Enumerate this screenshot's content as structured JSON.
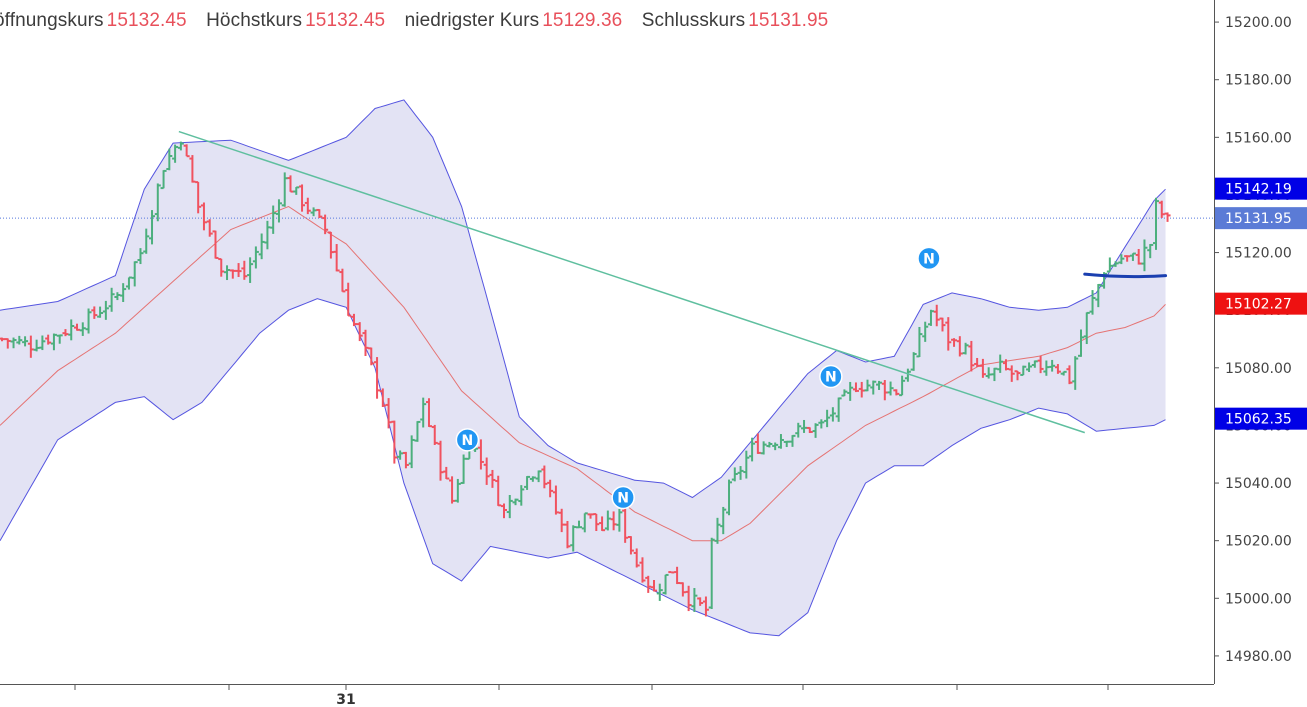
{
  "legend": {
    "open_label": "öffnungskurs",
    "open_value": "15132.45",
    "high_label": "Höchstkurs",
    "high_value": "15132.45",
    "low_label": "niedrigster Kurs",
    "low_value": "15129.36",
    "close_label": "Schlusskurs",
    "close_value": "15131.95"
  },
  "colors": {
    "up": "#4caf7d",
    "down": "#f0525f",
    "band_fill": "#e3e3f4",
    "band_line": "#5555e0",
    "basis": "#e57373",
    "trendline": "#5fbf9f",
    "support": "#1a3fb0",
    "tag_upper": "#0000e6",
    "tag_price": "#5b7bd6",
    "tag_mid": "#ee1111",
    "news": "#2196f3"
  },
  "chart_data": {
    "type": "ohlc",
    "y_tick_labels": [
      "15200.00",
      "15180.00",
      "15160.00",
      "15140.00",
      "15120.00",
      "15100.00",
      "15080.00",
      "15060.00",
      "15040.00",
      "15020.00",
      "15000.00",
      "14980.00"
    ],
    "y_ticks": [
      15200,
      15180,
      15160,
      15140,
      15120,
      15100,
      15080,
      15060,
      15040,
      15020,
      15000,
      14980
    ],
    "ylim": [
      14976.5,
      15203.5
    ],
    "x_tick_labels": [
      "31"
    ],
    "grid": false,
    "price_tags": [
      {
        "value": 15142.19,
        "label": "15142.19",
        "role": "upper"
      },
      {
        "value": 15131.95,
        "label": "15131.95",
        "role": "price"
      },
      {
        "value": 15102.27,
        "label": "15102.27",
        "role": "mid"
      },
      {
        "value": 15062.35,
        "label": "15062.35",
        "role": "lower"
      }
    ],
    "last_price_line": 15131.95,
    "news_marker_label": "N",
    "news_markers": [
      {
        "bar": 81,
        "y": 15055.0
      },
      {
        "bar": 108,
        "y": 15035.0
      },
      {
        "bar": 144,
        "y": 15077.0
      },
      {
        "bar": 161,
        "y": 15118.0
      }
    ],
    "trendline": {
      "from": {
        "bar": 31,
        "y": 15162.0
      },
      "to": {
        "bar": 188,
        "y": 15057.5
      }
    },
    "support_line": {
      "from": {
        "bar": 188,
        "y": 15112.5
      },
      "to": {
        "bar": 202,
        "y": 15112.0
      }
    },
    "series": [
      {
        "name": "bars",
        "anchors": [
          [
            0,
            15090
          ],
          [
            5,
            15088
          ],
          [
            10,
            15092
          ],
          [
            15,
            15097
          ],
          [
            20,
            15105
          ],
          [
            24,
            15120
          ],
          [
            28,
            15150
          ],
          [
            31,
            15160
          ],
          [
            34,
            15136
          ],
          [
            38,
            15115
          ],
          [
            42,
            15112
          ],
          [
            46,
            15128
          ],
          [
            49,
            15145
          ],
          [
            52,
            15138
          ],
          [
            56,
            15128
          ],
          [
            60,
            15100
          ],
          [
            64,
            15080
          ],
          [
            66,
            15068
          ],
          [
            68,
            15050
          ],
          [
            70,
            15046
          ],
          [
            73,
            15068
          ],
          [
            75,
            15052
          ],
          [
            78,
            15034
          ],
          [
            81,
            15055
          ],
          [
            84,
            15044
          ],
          [
            87,
            15030
          ],
          [
            90,
            15040
          ],
          [
            93,
            15046
          ],
          [
            96,
            15030
          ],
          [
            98,
            15020
          ],
          [
            101,
            15030
          ],
          [
            104,
            15024
          ],
          [
            107,
            15028
          ],
          [
            110,
            15012
          ],
          [
            113,
            15002
          ],
          [
            116,
            15010
          ],
          [
            119,
            15000
          ],
          [
            122,
            14996
          ],
          [
            123,
            15018
          ],
          [
            126,
            15038
          ],
          [
            130,
            15052
          ],
          [
            134,
            15055
          ],
          [
            138,
            15058
          ],
          [
            142,
            15060
          ],
          [
            145,
            15067
          ],
          [
            148,
            15074
          ],
          [
            152,
            15074
          ],
          [
            155,
            15072
          ],
          [
            158,
            15084
          ],
          [
            161,
            15100
          ],
          [
            164,
            15090
          ],
          [
            167,
            15086
          ],
          [
            170,
            15076
          ],
          [
            173,
            15080
          ],
          [
            176,
            15077
          ],
          [
            179,
            15080
          ],
          [
            182,
            15082
          ],
          [
            185,
            15076
          ],
          [
            188,
            15098
          ],
          [
            191,
            15114
          ],
          [
            194,
            15118
          ],
          [
            197,
            15118
          ],
          [
            199,
            15123
          ],
          [
            200,
            15136
          ],
          [
            202,
            15131
          ]
        ]
      },
      {
        "name": "upper band",
        "anchors": [
          [
            0,
            15100
          ],
          [
            10,
            15103
          ],
          [
            20,
            15112
          ],
          [
            25,
            15142
          ],
          [
            30,
            15158
          ],
          [
            40,
            15159
          ],
          [
            50,
            15152
          ],
          [
            60,
            15160
          ],
          [
            65,
            15170
          ],
          [
            70,
            15173
          ],
          [
            75,
            15160
          ],
          [
            80,
            15136
          ],
          [
            85,
            15100
          ],
          [
            90,
            15063
          ],
          [
            95,
            15053
          ],
          [
            100,
            15047
          ],
          [
            105,
            15044
          ],
          [
            110,
            15041
          ],
          [
            115,
            15040
          ],
          [
            120,
            15035
          ],
          [
            125,
            15042
          ],
          [
            130,
            15054
          ],
          [
            135,
            15066
          ],
          [
            140,
            15078
          ],
          [
            145,
            15086
          ],
          [
            150,
            15082
          ],
          [
            155,
            15084
          ],
          [
            160,
            15102
          ],
          [
            165,
            15106
          ],
          [
            170,
            15104
          ],
          [
            175,
            15101
          ],
          [
            180,
            15100
          ],
          [
            185,
            15101
          ],
          [
            190,
            15106
          ],
          [
            195,
            15122
          ],
          [
            200,
            15138
          ],
          [
            202,
            15142
          ]
        ]
      },
      {
        "name": "basis",
        "anchors": [
          [
            0,
            15060
          ],
          [
            10,
            15079
          ],
          [
            20,
            15092
          ],
          [
            30,
            15110
          ],
          [
            40,
            15128
          ],
          [
            50,
            15136
          ],
          [
            56,
            15128
          ],
          [
            60,
            15123
          ],
          [
            70,
            15101
          ],
          [
            80,
            15072
          ],
          [
            90,
            15054
          ],
          [
            100,
            15045
          ],
          [
            110,
            15030
          ],
          [
            120,
            15020
          ],
          [
            125,
            15020
          ],
          [
            130,
            15026
          ],
          [
            140,
            15046
          ],
          [
            150,
            15060
          ],
          [
            160,
            15070
          ],
          [
            170,
            15081
          ],
          [
            180,
            15084
          ],
          [
            185,
            15087
          ],
          [
            190,
            15092
          ],
          [
            195,
            15094
          ],
          [
            200,
            15098
          ],
          [
            202,
            15102
          ]
        ]
      },
      {
        "name": "lower band",
        "anchors": [
          [
            0,
            15020
          ],
          [
            10,
            15055
          ],
          [
            20,
            15068
          ],
          [
            25,
            15070
          ],
          [
            30,
            15062
          ],
          [
            35,
            15068
          ],
          [
            40,
            15080
          ],
          [
            45,
            15092
          ],
          [
            50,
            15100
          ],
          [
            55,
            15104
          ],
          [
            60,
            15101
          ],
          [
            65,
            15080
          ],
          [
            70,
            15040
          ],
          [
            75,
            15012
          ],
          [
            80,
            15006
          ],
          [
            85,
            15018
          ],
          [
            90,
            15016
          ],
          [
            95,
            15014
          ],
          [
            100,
            15016
          ],
          [
            110,
            15006
          ],
          [
            120,
            14996
          ],
          [
            130,
            14988
          ],
          [
            135,
            14987
          ],
          [
            140,
            14995
          ],
          [
            145,
            15020
          ],
          [
            150,
            15040
          ],
          [
            155,
            15046
          ],
          [
            160,
            15046
          ],
          [
            165,
            15053
          ],
          [
            170,
            15059
          ],
          [
            175,
            15062
          ],
          [
            180,
            15066
          ],
          [
            185,
            15064
          ],
          [
            190,
            15058
          ],
          [
            195,
            15059
          ],
          [
            200,
            15060
          ],
          [
            202,
            15062
          ]
        ]
      }
    ]
  }
}
